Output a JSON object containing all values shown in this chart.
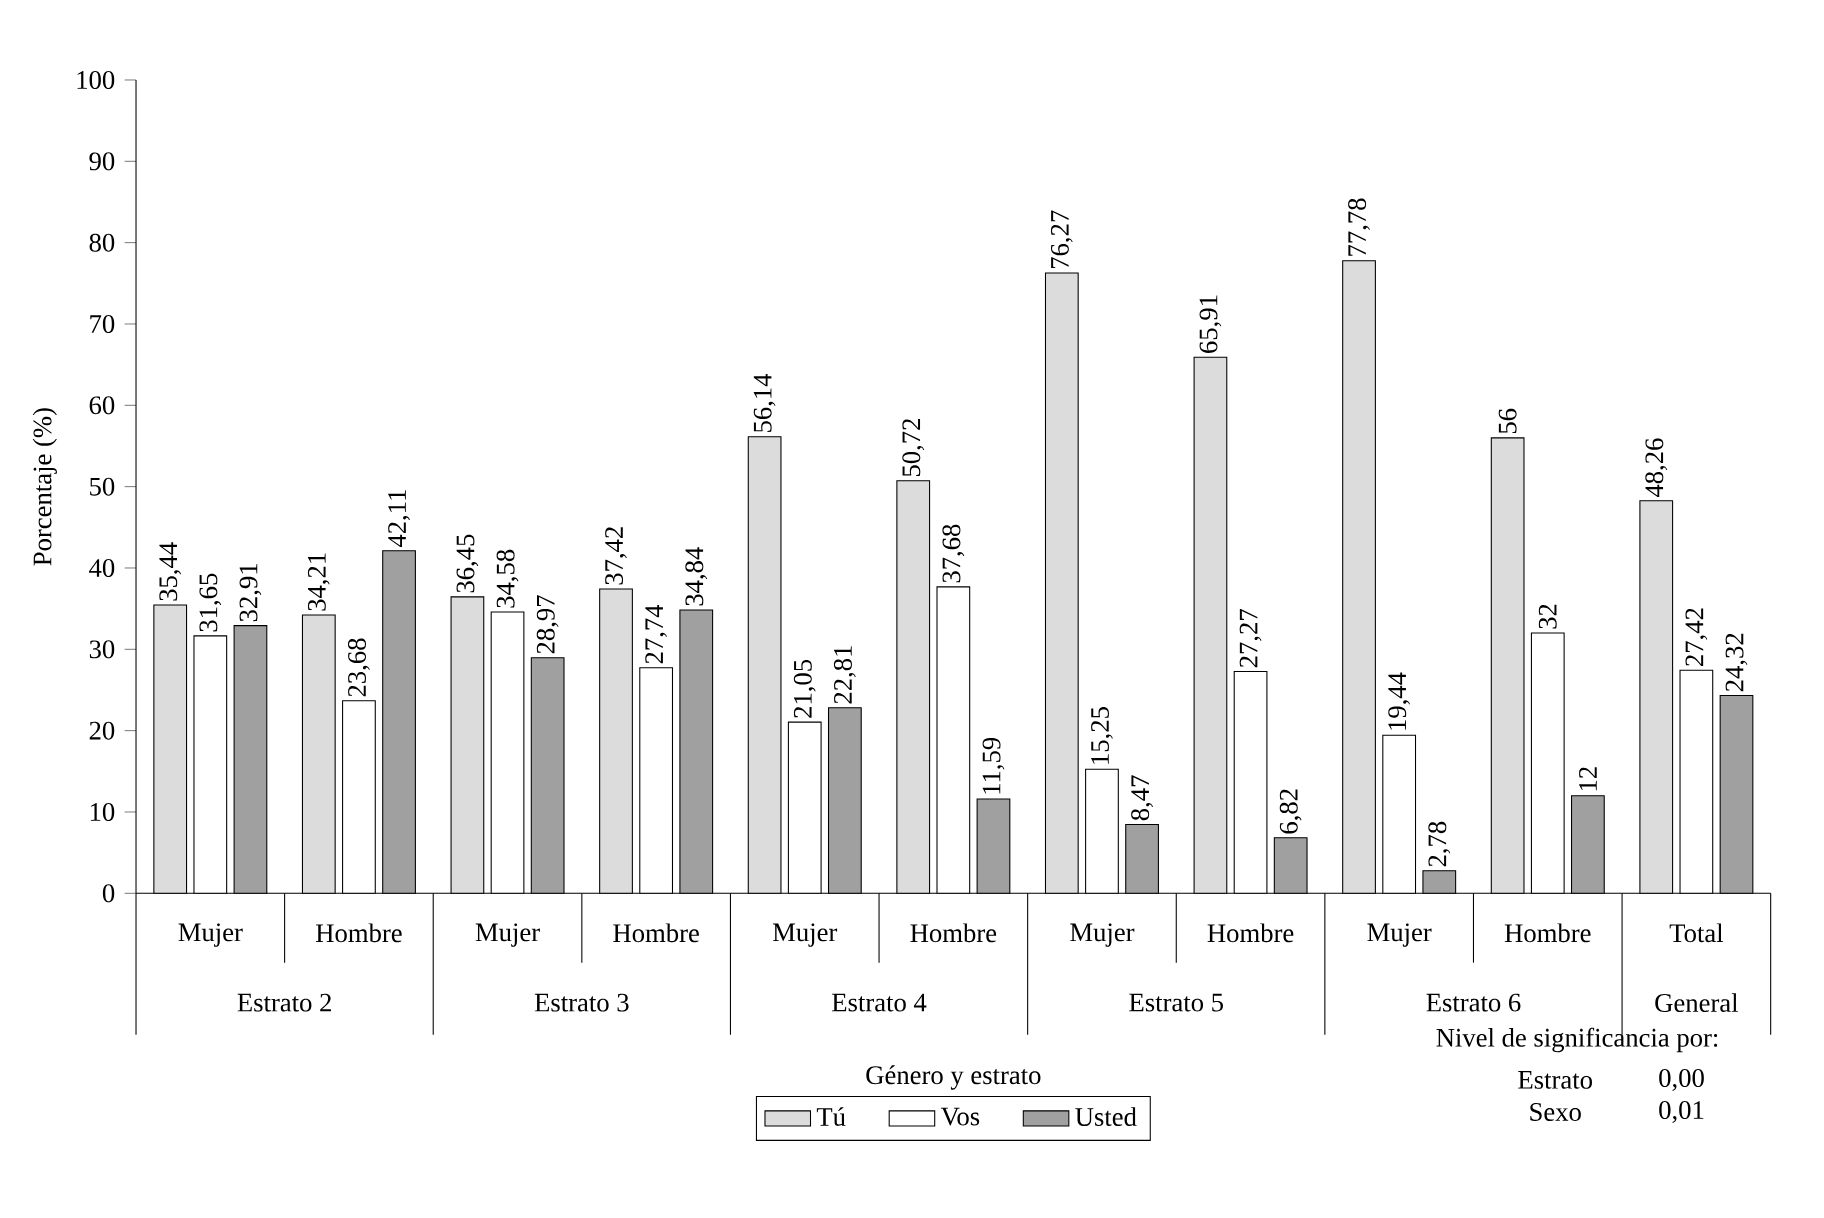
{
  "chart_data": {
    "type": "bar",
    "xlabel": "Género y estrato",
    "ylabel": "Porcentaje (%)",
    "categories": [
      "Mujer",
      "Hombre",
      "Mujer",
      "Hombre",
      "Mujer",
      "Hombre",
      "Mujer",
      "Hombre",
      "Mujer",
      "Hombre",
      "Total"
    ],
    "series": [
      {
        "name": "Tú",
        "color": "#dcdcdc",
        "values": [
          35.44,
          34.21,
          36.45,
          37.42,
          56.14,
          50.72,
          76.27,
          65.91,
          77.78,
          56,
          48.26
        ],
        "value_labels": [
          "35,44",
          "34,21",
          "36,45",
          "37,42",
          "56,14",
          "50,72",
          "76,27",
          "65,91",
          "77,78",
          "56",
          "48,26"
        ]
      },
      {
        "name": "Vos",
        "color": "#ffffff",
        "values": [
          31.65,
          23.68,
          34.58,
          27.74,
          21.05,
          37.68,
          15.25,
          27.27,
          19.44,
          32,
          27.42
        ],
        "value_labels": [
          "31,65",
          "23,68",
          "34,58",
          "27,74",
          "21,05",
          "37,68",
          "15,25",
          "27,27",
          "19,44",
          "32",
          "27,42"
        ]
      },
      {
        "name": "Usted",
        "color": "#a0a0a0",
        "values": [
          32.91,
          42.11,
          28.97,
          34.84,
          22.81,
          11.59,
          8.47,
          6.82,
          2.78,
          12,
          24.32
        ],
        "value_labels": [
          "32,91",
          "42,11",
          "28,97",
          "34,84",
          "22,81",
          "11,59",
          "8,47",
          "6,82",
          "2,78",
          "12",
          "24,32"
        ]
      }
    ],
    "ylim": [
      0,
      100
    ],
    "yticks": [
      0,
      10,
      20,
      30,
      40,
      50,
      60,
      70,
      80,
      90,
      100
    ],
    "legend": "bottom",
    "grid": false,
    "annotations": [
      "Estrato 2",
      "Estrato 3",
      "Estrato 4",
      "Estrato 5",
      "Estrato 6",
      "General",
      "Nivel de significancia por:",
      "Estrato",
      "0,00",
      "Sexo",
      "0,01"
    ]
  }
}
